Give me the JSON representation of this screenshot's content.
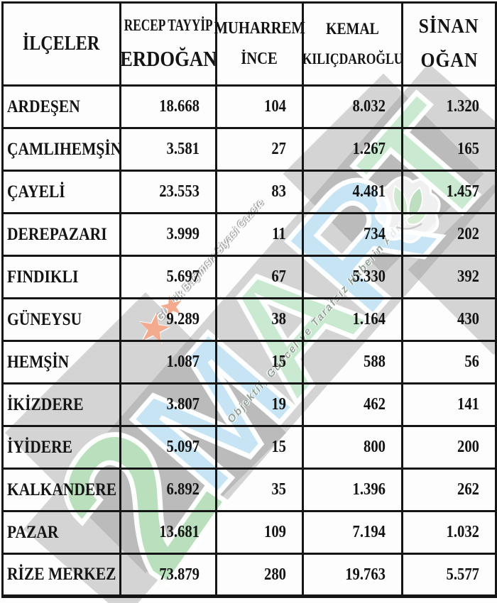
{
  "table": {
    "header": {
      "district_col": "İLÇELER",
      "candidates": [
        {
          "line1": "RECEP TAYYİP",
          "line2": "ERDOĞAN"
        },
        {
          "line1": "MUHARREM",
          "line2": "İNCE"
        },
        {
          "line1": "KEMAL",
          "line2": "KILIÇDAROĞLU"
        },
        {
          "line1": "SİNAN",
          "line2": "OĞAN"
        }
      ]
    },
    "rows": [
      {
        "district": "ARDEŞEN",
        "values": [
          "18.668",
          "104",
          "8.032",
          "1.320"
        ]
      },
      {
        "district": "ÇAMLIHEMŞİN",
        "values": [
          "3.581",
          "27",
          "1.267",
          "165"
        ]
      },
      {
        "district": "ÇAYELİ",
        "values": [
          "23.553",
          "83",
          "4.481",
          "1.457"
        ]
      },
      {
        "district": "DEREPAZARI",
        "values": [
          "3.999",
          "11",
          "734",
          "202"
        ]
      },
      {
        "district": "FINDIKLI",
        "values": [
          "5.697",
          "67",
          "5.330",
          "392"
        ]
      },
      {
        "district": "GÜNEYSU",
        "values": [
          "9.289",
          "38",
          "1.164",
          "430"
        ]
      },
      {
        "district": "HEMŞİN",
        "values": [
          "1.087",
          "15",
          "588",
          "56"
        ]
      },
      {
        "district": "İKİZDERE",
        "values": [
          "3.807",
          "19",
          "462",
          "141"
        ]
      },
      {
        "district": "İYİDERE",
        "values": [
          "5.097",
          "15",
          "800",
          "200"
        ]
      },
      {
        "district": "KALKANDERE",
        "values": [
          "6.892",
          "35",
          "1.396",
          "262"
        ]
      },
      {
        "district": "PAZAR",
        "values": [
          "13.681",
          "109",
          "7.194",
          "1.032"
        ]
      },
      {
        "district": "RİZE MERKEZ",
        "values": [
          "73.879",
          "280",
          "19.763",
          "5.577"
        ]
      }
    ]
  },
  "watermark": {
    "numeral": "2",
    "numeral_color": "#b9dfbc",
    "letters": [
      {
        "char": "M",
        "color": "#c6e4f3"
      },
      {
        "char": "A",
        "color": "#c9ead0"
      },
      {
        "char": "R",
        "color": "#c6e4f3"
      },
      {
        "char": "T",
        "color": "#c9ead0"
      }
    ],
    "tagline1": "Günlük Bağımsız Siyasi Gazete",
    "tagline1_color": "#ffffff",
    "tagline2": "Objektif, Güncel ve Tarafsız Haberin Adresi",
    "tagline2_color": "#93a397",
    "shape_color": "rgba(150,150,150,0.40)",
    "star_color": "#f3aa8e",
    "icons": {
      "star": "★"
    }
  },
  "chart_data": {
    "type": "table",
    "title": "",
    "categories": [
      "ARDEŞEN",
      "ÇAMLIHEMŞİN",
      "ÇAYELİ",
      "DEREPAZARI",
      "FINDIKLI",
      "GÜNEYSU",
      "HEMŞİN",
      "İKİZDERE",
      "İYİDERE",
      "KALKANDERE",
      "PAZAR",
      "RİZE MERKEZ"
    ],
    "series": [
      {
        "name": "RECEP TAYYİP ERDOĞAN",
        "values": [
          18668,
          3581,
          23553,
          3999,
          5697,
          9289,
          1087,
          3807,
          5097,
          6892,
          13681,
          73879
        ]
      },
      {
        "name": "MUHARREM İNCE",
        "values": [
          104,
          27,
          83,
          11,
          67,
          38,
          15,
          19,
          15,
          35,
          109,
          280
        ]
      },
      {
        "name": "KEMAL KILIÇDAROĞLU",
        "values": [
          8032,
          1267,
          4481,
          734,
          5330,
          1164,
          588,
          462,
          800,
          1396,
          7194,
          19763
        ]
      },
      {
        "name": "SİNAN OĞAN",
        "values": [
          1320,
          165,
          1457,
          202,
          392,
          430,
          56,
          141,
          200,
          262,
          1032,
          5577
        ]
      }
    ],
    "xlabel": "İLÇELER",
    "ylabel": ""
  }
}
